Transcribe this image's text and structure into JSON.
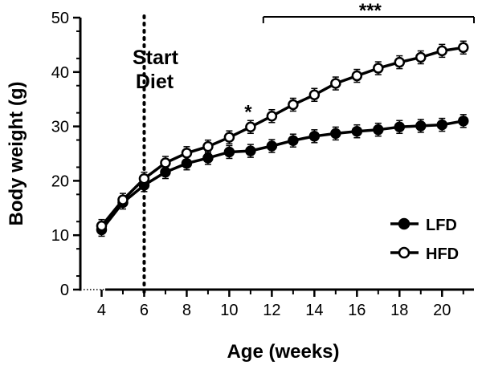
{
  "chart_data": {
    "type": "line",
    "xlabel": "Age (weeks)",
    "ylabel": "Body weight (g)",
    "xlim": [
      3,
      21.5
    ],
    "ylim": [
      0,
      50
    ],
    "x_ticks": [
      4,
      6,
      8,
      10,
      12,
      14,
      16,
      18,
      20
    ],
    "y_ticks": [
      0,
      10,
      20,
      30,
      40,
      50
    ],
    "x": [
      4,
      5,
      6,
      7,
      8,
      9,
      10,
      11,
      12,
      13,
      14,
      15,
      16,
      17,
      18,
      19,
      20,
      21
    ],
    "series": [
      {
        "name": "LFD",
        "marker": "filled-circle",
        "color": "#000000",
        "values": [
          11.0,
          16.0,
          19.2,
          21.6,
          23.2,
          24.2,
          25.3,
          25.5,
          26.4,
          27.4,
          28.2,
          28.7,
          29.1,
          29.4,
          29.9,
          30.1,
          30.3,
          31.0
        ]
      },
      {
        "name": "HFD",
        "marker": "open-circle",
        "color": "#000000",
        "values": [
          11.7,
          16.5,
          20.4,
          23.3,
          25.1,
          26.3,
          28.0,
          29.9,
          31.9,
          34.0,
          35.8,
          37.9,
          39.3,
          40.7,
          41.8,
          42.7,
          43.9,
          44.5
        ]
      }
    ],
    "annotations": {
      "diet_start": {
        "x": 6,
        "label_line1": "Start",
        "label_line2": "Diet"
      },
      "single_star": {
        "x": 11,
        "label": "*"
      },
      "triple_star": {
        "x_from": 11.6,
        "x_to": 21.5,
        "label": "***"
      }
    },
    "legend_position": "bottom-right",
    "grid": false
  }
}
